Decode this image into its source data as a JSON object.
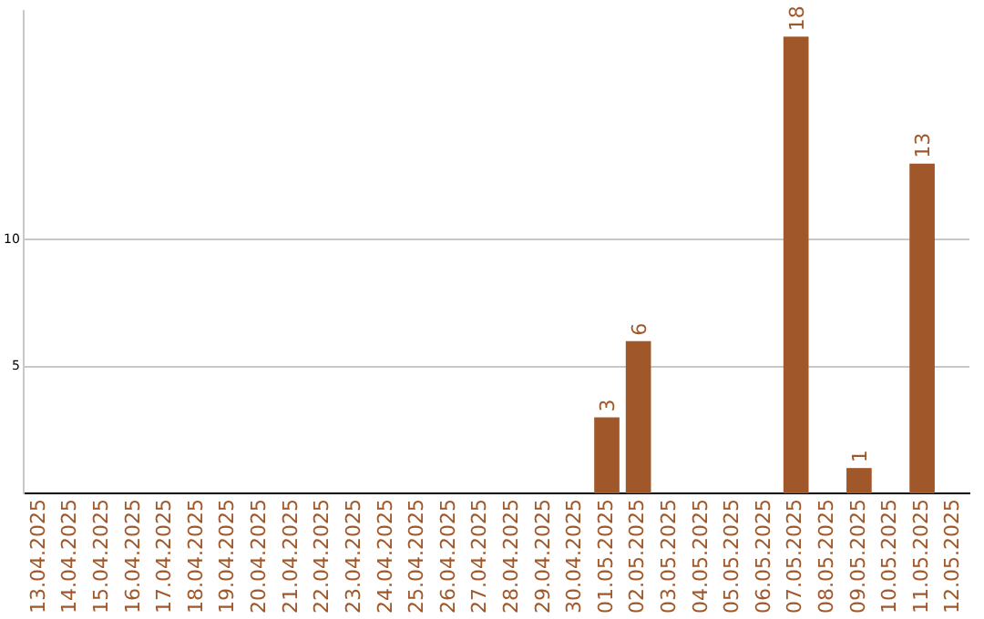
{
  "chart_data": {
    "type": "bar",
    "categories": [
      "13.04.2025",
      "14.04.2025",
      "15.04.2025",
      "16.04.2025",
      "17.04.2025",
      "18.04.2025",
      "19.04.2025",
      "20.04.2025",
      "21.04.2025",
      "22.04.2025",
      "23.04.2025",
      "24.04.2025",
      "25.04.2025",
      "26.04.2025",
      "27.04.2025",
      "28.04.2025",
      "29.04.2025",
      "30.04.2025",
      "01.05.2025",
      "02.05.2025",
      "03.05.2025",
      "04.05.2025",
      "05.05.2025",
      "06.05.2025",
      "07.05.2025",
      "08.05.2025",
      "09.05.2025",
      "10.05.2025",
      "11.05.2025",
      "12.05.2025"
    ],
    "values": [
      null,
      null,
      null,
      null,
      null,
      null,
      null,
      null,
      null,
      null,
      null,
      null,
      null,
      null,
      null,
      null,
      null,
      null,
      3,
      6,
      null,
      null,
      null,
      null,
      18,
      null,
      1,
      null,
      13,
      null
    ],
    "color": "#a0582a",
    "ylim": [
      0,
      19
    ],
    "yticks": [
      5,
      10
    ],
    "grid": "y",
    "data_labels": true,
    "legend": false
  }
}
